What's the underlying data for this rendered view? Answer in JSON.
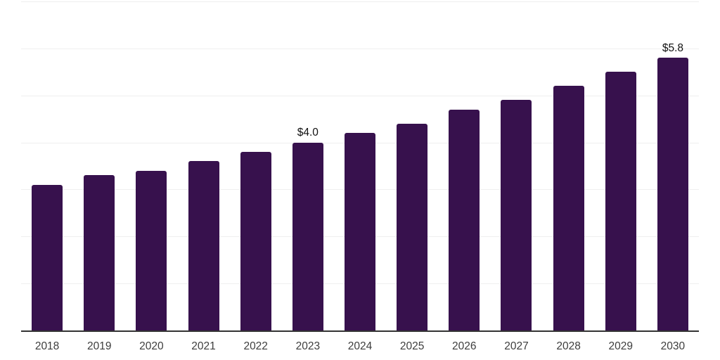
{
  "chart_data": {
    "type": "bar",
    "title": "",
    "xlabel": "",
    "ylabel": "",
    "categories": [
      "2018",
      "2019",
      "2020",
      "2021",
      "2022",
      "2023",
      "2024",
      "2025",
      "2026",
      "2027",
      "2028",
      "2029",
      "2030"
    ],
    "values": [
      3.1,
      3.3,
      3.4,
      3.6,
      3.8,
      4.0,
      4.2,
      4.4,
      4.7,
      4.9,
      5.2,
      5.5,
      5.8
    ],
    "data_labels": [
      {
        "category": "2023",
        "text": "$4.0"
      },
      {
        "category": "2030",
        "text": "$5.8"
      }
    ],
    "ylim": [
      0,
      7
    ],
    "gridline_values": [
      1,
      2,
      3,
      4,
      5,
      6,
      7
    ],
    "grid": "horizontal",
    "legend": "none",
    "y_axis_tick_labels": "none",
    "colors": {
      "bar": "#37114d",
      "axis_line": "#333333",
      "gridline": "#efefef",
      "x_tick_label": "#3d3d3d",
      "data_label": "#111111",
      "background": "#ffffff"
    }
  }
}
